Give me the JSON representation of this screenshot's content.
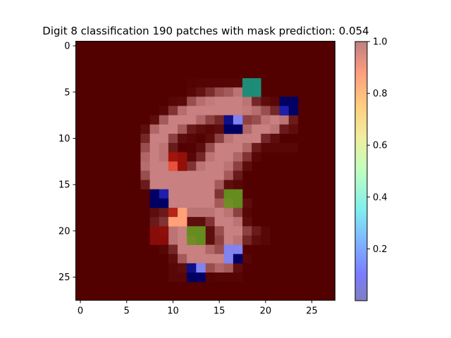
{
  "chart_data": {
    "type": "heatmap",
    "title": "Digit 8 classification 190 patches with mask prediction: 0.054",
    "grid_size": 28,
    "x_ticks": [
      0,
      5,
      10,
      15,
      20,
      25
    ],
    "y_ticks": [
      0,
      5,
      10,
      15,
      20,
      25
    ],
    "xlim": [
      -0.5,
      27.5
    ],
    "ylim": [
      27.5,
      -0.5
    ],
    "grid": false,
    "background_color": "#520000",
    "colorbar": {
      "range": [
        0,
        1.0
      ],
      "ticks": [
        0.2,
        0.4,
        0.6,
        0.8,
        1.0
      ],
      "tick_labels": [
        "0.2",
        "0.4",
        "0.6",
        "0.8",
        "1.0"
      ],
      "colormap": "jet with alpha"
    },
    "mask_cells": [
      {
        "row": 4,
        "col": 18,
        "value": 0.35
      },
      {
        "row": 4,
        "col": 19,
        "value": 0.35
      },
      {
        "row": 5,
        "col": 18,
        "value": 0.35
      },
      {
        "row": 5,
        "col": 19,
        "value": 0.35
      },
      {
        "row": 6,
        "col": 22,
        "value": 0.0
      },
      {
        "row": 6,
        "col": 23,
        "value": 0.0
      },
      {
        "row": 7,
        "col": 22,
        "value": 0.1
      },
      {
        "row": 7,
        "col": 23,
        "value": 0.0
      },
      {
        "row": 8,
        "col": 16,
        "value": 0.05
      },
      {
        "row": 8,
        "col": 17,
        "value": 0.15
      },
      {
        "row": 9,
        "col": 16,
        "value": 0.0
      },
      {
        "row": 9,
        "col": 17,
        "value": 0.0
      },
      {
        "row": 12,
        "col": 10,
        "value": 0.95
      },
      {
        "row": 12,
        "col": 11,
        "value": 0.97
      },
      {
        "row": 13,
        "col": 10,
        "value": 0.88
      },
      {
        "row": 13,
        "col": 11,
        "value": 0.97
      },
      {
        "row": 16,
        "col": 8,
        "value": 0.0
      },
      {
        "row": 16,
        "col": 9,
        "value": 0.1
      },
      {
        "row": 17,
        "col": 8,
        "value": 0.0
      },
      {
        "row": 17,
        "col": 9,
        "value": 0.0
      },
      {
        "row": 16,
        "col": 16,
        "value": 0.55
      },
      {
        "row": 16,
        "col": 17,
        "value": 0.55
      },
      {
        "row": 17,
        "col": 16,
        "value": 0.57
      },
      {
        "row": 17,
        "col": 17,
        "value": 0.55
      },
      {
        "row": 18,
        "col": 10,
        "value": 0.93
      },
      {
        "row": 18,
        "col": 11,
        "value": 0.8
      },
      {
        "row": 19,
        "col": 10,
        "value": 0.8
      },
      {
        "row": 19,
        "col": 11,
        "value": 0.8
      },
      {
        "row": 20,
        "col": 8,
        "value": 0.99
      },
      {
        "row": 20,
        "col": 9,
        "value": 0.98
      },
      {
        "row": 21,
        "col": 8,
        "value": 0.99
      },
      {
        "row": 21,
        "col": 9,
        "value": 0.99
      },
      {
        "row": 20,
        "col": 12,
        "value": 0.55
      },
      {
        "row": 20,
        "col": 13,
        "value": 0.55
      },
      {
        "row": 21,
        "col": 12,
        "value": 0.57
      },
      {
        "row": 21,
        "col": 13,
        "value": 0.55
      },
      {
        "row": 22,
        "col": 16,
        "value": 0.15
      },
      {
        "row": 22,
        "col": 17,
        "value": 0.15
      },
      {
        "row": 23,
        "col": 16,
        "value": 0.15
      },
      {
        "row": 23,
        "col": 17,
        "value": 0.0
      },
      {
        "row": 24,
        "col": 12,
        "value": 0.05
      },
      {
        "row": 24,
        "col": 13,
        "value": 0.15
      },
      {
        "row": 25,
        "col": 12,
        "value": 0.0
      },
      {
        "row": 25,
        "col": 13,
        "value": 0.0
      }
    ],
    "digit_rows": [
      {
        "row": 4,
        "cells": [
          [
            12,
            0.02
          ],
          [
            13,
            0.03
          ],
          [
            14,
            0.03
          ],
          [
            15,
            0.03
          ],
          [
            16,
            0.04
          ],
          [
            17,
            0.04
          ]
        ]
      },
      {
        "row": 5,
        "cells": [
          [
            12,
            0.05
          ],
          [
            13,
            0.15
          ],
          [
            14,
            0.35
          ],
          [
            15,
            0.6
          ],
          [
            16,
            0.7
          ],
          [
            17,
            0.9
          ]
        ]
      },
      {
        "row": 6,
        "cells": [
          [
            10,
            0.05
          ],
          [
            11,
            0.08
          ],
          [
            12,
            0.6
          ],
          [
            13,
            0.85
          ],
          [
            14,
            0.95
          ],
          [
            15,
            1
          ],
          [
            16,
            1
          ],
          [
            17,
            1
          ],
          [
            18,
            0.9
          ],
          [
            19,
            0.3
          ],
          [
            20,
            0.1
          ],
          [
            21,
            0.05
          ]
        ]
      },
      {
        "row": 7,
        "cells": [
          [
            9,
            0.05
          ],
          [
            10,
            0.4
          ],
          [
            11,
            0.85
          ],
          [
            12,
            1
          ],
          [
            13,
            1
          ],
          [
            14,
            1
          ],
          [
            15,
            1
          ],
          [
            16,
            1
          ],
          [
            17,
            1
          ],
          [
            18,
            0.95
          ],
          [
            19,
            0.85
          ],
          [
            20,
            0.6
          ],
          [
            21,
            0.3
          ]
        ]
      },
      {
        "row": 8,
        "cells": [
          [
            8,
            0.1
          ],
          [
            9,
            0.7
          ],
          [
            10,
            1
          ],
          [
            11,
            1
          ],
          [
            12,
            1
          ],
          [
            13,
            0.8
          ],
          [
            14,
            0.5
          ],
          [
            15,
            0.3
          ],
          [
            18,
            0.5
          ],
          [
            19,
            0.6
          ],
          [
            20,
            0.9
          ],
          [
            21,
            1
          ],
          [
            22,
            0.9
          ],
          [
            23,
            0.2
          ]
        ]
      },
      {
        "row": 9,
        "cells": [
          [
            7,
            0.1
          ],
          [
            8,
            0.8
          ],
          [
            9,
            1
          ],
          [
            10,
            1
          ],
          [
            11,
            0.7
          ],
          [
            12,
            0.2
          ],
          [
            13,
            0.1
          ],
          [
            14,
            0.05
          ],
          [
            15,
            0.1
          ],
          [
            18,
            0.8
          ],
          [
            19,
            1
          ],
          [
            20,
            1
          ],
          [
            21,
            0.9
          ],
          [
            22,
            0.2
          ],
          [
            23,
            0.1
          ]
        ]
      },
      {
        "row": 10,
        "cells": [
          [
            7,
            0.3
          ],
          [
            8,
            1
          ],
          [
            9,
            1
          ],
          [
            10,
            0.5
          ],
          [
            11,
            0.1
          ],
          [
            12,
            0.05
          ],
          [
            13,
            0.02
          ],
          [
            14,
            0.1
          ],
          [
            15,
            0.5
          ],
          [
            16,
            0.9
          ],
          [
            17,
            1
          ],
          [
            18,
            1
          ],
          [
            19,
            1
          ],
          [
            20,
            0.3
          ],
          [
            21,
            0.1
          ]
        ]
      },
      {
        "row": 11,
        "cells": [
          [
            7,
            0.6
          ],
          [
            8,
            1
          ],
          [
            9,
            0.9
          ],
          [
            10,
            0.2
          ],
          [
            12,
            0.02
          ],
          [
            13,
            0.1
          ],
          [
            14,
            0.6
          ],
          [
            15,
            1
          ],
          [
            16,
            1
          ],
          [
            17,
            1
          ],
          [
            18,
            0.8
          ],
          [
            19,
            0.2
          ],
          [
            20,
            0.05
          ],
          [
            21,
            0.05
          ],
          [
            22,
            0.05
          ],
          [
            23,
            0.05
          ]
        ]
      },
      {
        "row": 12,
        "cells": [
          [
            7,
            0.8
          ],
          [
            8,
            1
          ],
          [
            9,
            0.9
          ],
          [
            12,
            0.05
          ],
          [
            13,
            0.3
          ],
          [
            14,
            0.9
          ],
          [
            15,
            1
          ],
          [
            16,
            1
          ],
          [
            17,
            0.8
          ],
          [
            18,
            0.4
          ],
          [
            19,
            0.05
          ]
        ]
      },
      {
        "row": 13,
        "cells": [
          [
            7,
            0.85
          ],
          [
            8,
            1
          ],
          [
            9,
            1
          ],
          [
            12,
            0.4
          ],
          [
            13,
            0.9
          ],
          [
            14,
            1
          ],
          [
            15,
            1
          ],
          [
            16,
            0.9
          ],
          [
            17,
            0.5
          ],
          [
            18,
            0.1
          ]
        ]
      },
      {
        "row": 14,
        "cells": [
          [
            7,
            0.6
          ],
          [
            8,
            1
          ],
          [
            9,
            1
          ],
          [
            10,
            1
          ],
          [
            11,
            1
          ],
          [
            12,
            1
          ],
          [
            13,
            1
          ],
          [
            14,
            1
          ],
          [
            15,
            1
          ],
          [
            16,
            0.7
          ],
          [
            17,
            0.2
          ]
        ]
      },
      {
        "row": 15,
        "cells": [
          [
            7,
            0.2
          ],
          [
            8,
            1
          ],
          [
            9,
            1
          ],
          [
            10,
            1
          ],
          [
            11,
            1
          ],
          [
            12,
            1
          ],
          [
            13,
            1
          ],
          [
            14,
            1
          ],
          [
            15,
            0.7
          ],
          [
            16,
            0.1
          ],
          [
            17,
            0.05
          ]
        ]
      },
      {
        "row": 16,
        "cells": [
          [
            10,
            1
          ],
          [
            11,
            1
          ],
          [
            12,
            1
          ],
          [
            13,
            1
          ],
          [
            14,
            1
          ],
          [
            15,
            0.4
          ]
        ]
      },
      {
        "row": 17,
        "cells": [
          [
            10,
            1
          ],
          [
            11,
            1
          ],
          [
            12,
            1
          ],
          [
            13,
            1
          ],
          [
            14,
            1
          ],
          [
            15,
            0.7
          ],
          [
            18,
            0.1
          ]
        ]
      },
      {
        "row": 18,
        "cells": [
          [
            8,
            0.1
          ],
          [
            9,
            0.2
          ],
          [
            12,
            0.9
          ],
          [
            13,
            0.9
          ],
          [
            14,
            0.9
          ],
          [
            15,
            1
          ],
          [
            16,
            0.9
          ],
          [
            17,
            0.5
          ],
          [
            18,
            0.05
          ]
        ]
      },
      {
        "row": 19,
        "cells": [
          [
            8,
            0.2
          ],
          [
            9,
            0.4
          ],
          [
            12,
            0.1
          ],
          [
            13,
            0.1
          ],
          [
            14,
            0.4
          ],
          [
            15,
            1
          ],
          [
            16,
            1
          ],
          [
            17,
            0.9
          ],
          [
            18,
            0.1
          ]
        ]
      },
      {
        "row": 20,
        "cells": [
          [
            10,
            0.9
          ],
          [
            11,
            1
          ],
          [
            14,
            0.1
          ],
          [
            15,
            0.6
          ],
          [
            16,
            1
          ],
          [
            17,
            1
          ],
          [
            18,
            0.5
          ],
          [
            19,
            0.2
          ],
          [
            20,
            0.05
          ]
        ]
      },
      {
        "row": 21,
        "cells": [
          [
            10,
            0.9
          ],
          [
            11,
            1
          ],
          [
            14,
            0.1
          ],
          [
            15,
            0.5
          ],
          [
            16,
            1
          ],
          [
            17,
            0.9
          ],
          [
            18,
            0.3
          ],
          [
            19,
            0.1
          ],
          [
            20,
            0.05
          ]
        ]
      },
      {
        "row": 22,
        "cells": [
          [
            9,
            0.05
          ],
          [
            10,
            0.3
          ],
          [
            11,
            1
          ],
          [
            12,
            1
          ],
          [
            13,
            1
          ],
          [
            14,
            0.8
          ],
          [
            15,
            0.6
          ]
        ]
      },
      {
        "row": 23,
        "cells": [
          [
            10,
            0.1
          ],
          [
            11,
            0.7
          ],
          [
            12,
            1
          ],
          [
            13,
            1
          ],
          [
            14,
            1
          ],
          [
            15,
            1
          ],
          [
            18,
            0.05
          ]
        ]
      },
      {
        "row": 24,
        "cells": [
          [
            10,
            0.05
          ],
          [
            11,
            0.1
          ],
          [
            14,
            0.6
          ],
          [
            15,
            0.8
          ],
          [
            16,
            0.7
          ],
          [
            17,
            0.1
          ]
        ]
      },
      {
        "row": 25,
        "cells": [
          [
            10,
            0.05
          ],
          [
            11,
            0.05
          ],
          [
            14,
            0.02
          ],
          [
            15,
            0.03
          ],
          [
            16,
            0.03
          ],
          [
            17,
            0.03
          ]
        ]
      }
    ]
  }
}
